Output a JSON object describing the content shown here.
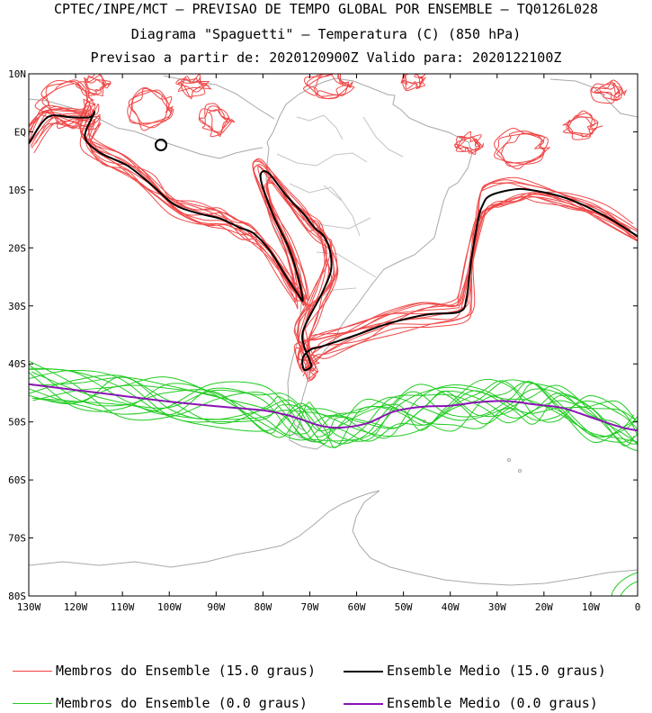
{
  "header": {
    "line1": "CPTEC/INPE/MCT – PREVISAO DE TEMPO GLOBAL POR ENSEMBLE – TQ0126L028",
    "line2": "Diagrama \"Spaguetti\" – Temperatura (C) (850 hPa)",
    "line3": "Previsao a partir de: 2020120900Z  Valido para: 2020122100Z"
  },
  "legend": [
    {
      "label": "Membros do Ensemble (15.0 graus)",
      "color": "#f04040",
      "style": "thin"
    },
    {
      "label": "Ensemble Medio (15.0 graus)",
      "color": "#000000",
      "style": "thick"
    },
    {
      "label": "Membros do Ensemble (0.0 graus)",
      "color": "#22cc22",
      "style": "thin"
    },
    {
      "label": "Ensemble Medio (0.0 graus)",
      "color": "#8a14b4",
      "style": "thick"
    }
  ],
  "chart_data": {
    "type": "line",
    "title": "Diagrama \"Spaguetti\" – Temperatura (C) (850 hPa)",
    "xlabel": "",
    "ylabel": "",
    "xlim": [
      -130,
      0
    ],
    "ylim": [
      -80,
      10
    ],
    "xticks": [
      "130W",
      "120W",
      "110W",
      "100W",
      "90W",
      "80W",
      "70W",
      "60W",
      "50W",
      "40W",
      "30W",
      "20W",
      "10W",
      "0"
    ],
    "yticks": [
      "10N",
      "EQ",
      "10S",
      "20S",
      "30S",
      "40S",
      "50S",
      "60S",
      "70S",
      "80S"
    ],
    "grid": false,
    "legend_position": "bottom",
    "series": [
      {
        "name": "Ensemble Medio (15.0 graus)",
        "color": "#000000",
        "segments": [
          {
            "lon": [
              -130,
              -126,
              -121,
              -117,
              -116,
              -118,
              -115,
              -109,
              -104,
              -99,
              -94,
              -89,
              -85,
              -82,
              -78.5,
              -75,
              -72.5,
              -71.5,
              -72.5,
              -74.5,
              -78,
              -80.5,
              -79,
              -75,
              -71.5,
              -69,
              -67,
              -65.7,
              -65.5,
              -67.5,
              -69.5,
              -71.5,
              -71.2,
              -70,
              -69.7,
              -71.2,
              -71.5,
              -69.8,
              -67.5,
              -60,
              -53,
              -45,
              -38,
              -36.5,
              -35.5,
              -34,
              -33,
              -31.5,
              -27,
              -23,
              -15,
              -7,
              0
            ],
            "lat": [
              -2,
              2.5,
              2.5,
              2.5,
              3.3,
              -0.8,
              -3.5,
              -5.8,
              -9,
              -12.5,
              -14,
              -15,
              -16.5,
              -17.5,
              -20.5,
              -25,
              -28,
              -29,
              -25,
              -20,
              -14,
              -8,
              -7,
              -11,
              -14,
              -16.5,
              -18,
              -20.5,
              -24,
              -28,
              -31,
              -34.5,
              -37,
              -39.5,
              -40.5,
              -41,
              -39,
              -37.5,
              -37,
              -35,
              -33,
              -31.5,
              -31,
              -28.5,
              -22,
              -15,
              -12.5,
              -11,
              -10,
              -10,
              -11.5,
              -14.5,
              -18
            ]
          }
        ]
      },
      {
        "name": "Ensemble Medio (0.0 graus)",
        "color": "#8a14b4",
        "segments": [
          {
            "lon": [
              -130,
              -120,
              -110,
              -100,
              -90,
              -80,
              -75,
              -71,
              -68,
              -64,
              -58,
              -52,
              -46,
              -40,
              -34,
              -28,
              -22,
              -16,
              -10,
              -4,
              0
            ],
            "lat": [
              -43.5,
              -44.5,
              -45.5,
              -46.5,
              -47.3,
              -48,
              -48.8,
              -49.8,
              -50.6,
              -51,
              -50.3,
              -48.2,
              -47.4,
              -47.2,
              -46.6,
              -46.4,
              -47,
              -47.6,
              -49.2,
              -50.8,
              -51.5
            ]
          }
        ]
      }
    ]
  }
}
